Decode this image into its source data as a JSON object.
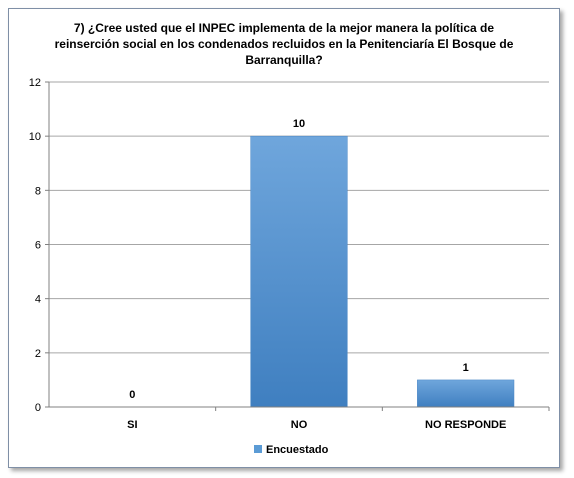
{
  "chart_data": {
    "type": "bar",
    "title_lines": [
      "7) ¿Cree usted que el INPEC implementa de la mejor manera la política de",
      "reinserción social  en los condenados  recluidos en la Penitenciaría El Bosque de",
      "Barranquilla?"
    ],
    "categories": [
      "SI",
      "NO",
      "NO RESPONDE"
    ],
    "series": [
      {
        "name": "Encuestado",
        "values": [
          0,
          10,
          1
        ]
      }
    ],
    "ylim": [
      0,
      12
    ],
    "yticks": [
      "0",
      "2",
      "4",
      "6",
      "8",
      "10",
      "12"
    ],
    "data_labels": [
      "0",
      "10",
      "1"
    ],
    "grid": true,
    "legend": "bottom",
    "colors": {
      "bar": "#5b9bd5",
      "bar_dark": "#3f7fc0",
      "grid": "#a6a6a6",
      "axis": "#808080"
    }
  }
}
